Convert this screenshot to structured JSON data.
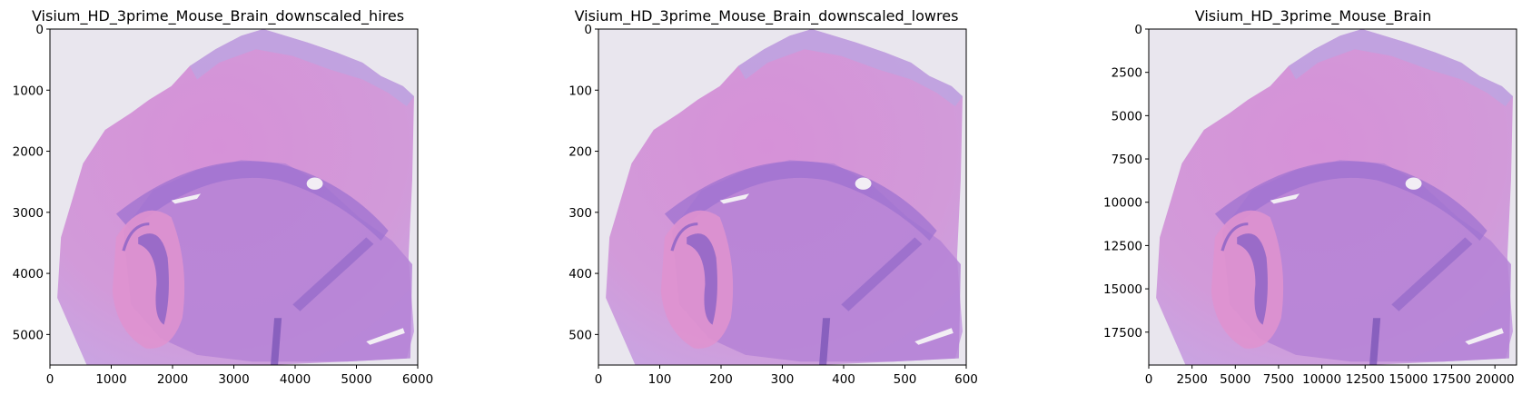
{
  "chart_data": [
    {
      "type": "image",
      "title": "Visium_HD_3prime_Mouse_Brain_downscaled_hires",
      "xlim": [
        0,
        6000
      ],
      "ylim": [
        5500,
        0
      ],
      "xticks": [
        0,
        1000,
        2000,
        3000,
        4000,
        5000,
        6000
      ],
      "yticks": [
        0,
        1000,
        2000,
        3000,
        4000,
        5000
      ],
      "xtick_labels": [
        "0",
        "1000",
        "2000",
        "3000",
        "4000",
        "5000",
        "6000"
      ],
      "ytick_labels": [
        "0",
        "1000",
        "2000",
        "3000",
        "4000",
        "5000"
      ],
      "image": "H&E stained mouse brain tissue section (pink/purple)"
    },
    {
      "type": "image",
      "title": "Visium_HD_3prime_Mouse_Brain_downscaled_lowres",
      "xlim": [
        0,
        600
      ],
      "ylim": [
        550,
        0
      ],
      "xticks": [
        0,
        100,
        200,
        300,
        400,
        500,
        600
      ],
      "yticks": [
        0,
        100,
        200,
        300,
        400,
        500
      ],
      "xtick_labels": [
        "0",
        "100",
        "200",
        "300",
        "400",
        "500",
        "600"
      ],
      "ytick_labels": [
        "0",
        "100",
        "200",
        "300",
        "400",
        "500"
      ],
      "image": "H&E stained mouse brain tissue section (pink/purple)"
    },
    {
      "type": "image",
      "title": "Visium_HD_3prime_Mouse_Brain",
      "xlim": [
        0,
        21250
      ],
      "ylim": [
        19400,
        0
      ],
      "xticks": [
        0,
        2500,
        5000,
        7500,
        10000,
        12500,
        15000,
        17500,
        20000
      ],
      "yticks": [
        0,
        2500,
        5000,
        7500,
        10000,
        12500,
        15000,
        17500
      ],
      "xtick_labels": [
        "0",
        "2500",
        "5000",
        "7500",
        "10000",
        "12500",
        "15000",
        "17500",
        "20000"
      ],
      "ytick_labels": [
        "0",
        "2500",
        "5000",
        "7500",
        "10000",
        "12500",
        "15000",
        "17500"
      ],
      "image": "H&E stained mouse brain tissue section (pink/purple)"
    }
  ],
  "colors": {
    "background": "#e9e6ee",
    "tissue_light": "#d89ad8",
    "tissue_mid": "#c77fd0",
    "tissue_dark": "#9a6fd0",
    "tissue_edge": "#b2a8e0",
    "nuclei": "#6a4fa8"
  }
}
